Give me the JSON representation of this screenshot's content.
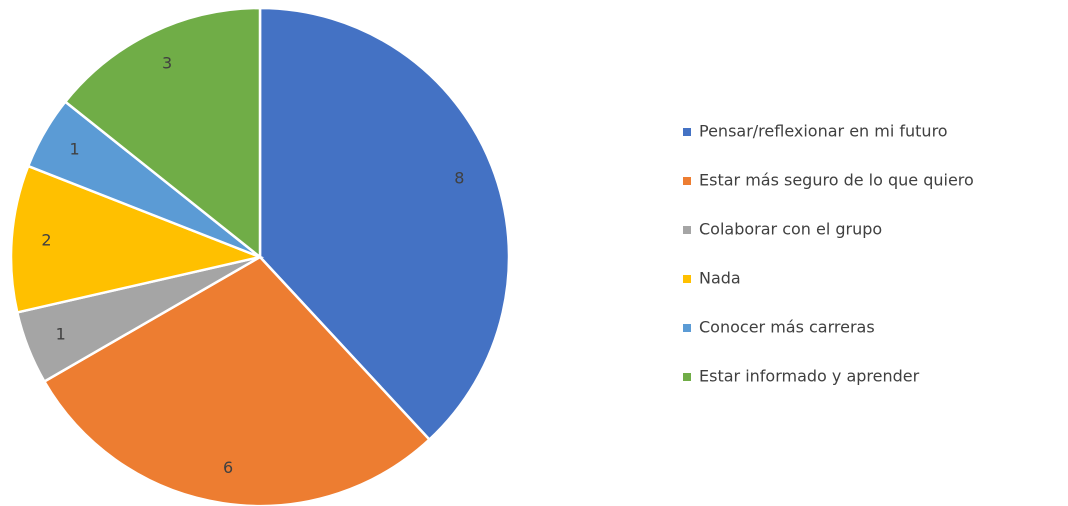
{
  "chart_data": {
    "type": "pie",
    "categories": [
      "Pensar/reflexionar en mi futuro",
      "Estar más seguro de lo que quiero",
      "Colaborar con el grupo",
      "Nada",
      "Conocer más carreras",
      "Estar informado y aprender"
    ],
    "values": [
      8,
      6,
      1,
      2,
      1,
      3
    ],
    "colors": [
      "#4472c4",
      "#ed7d31",
      "#a5a5a5",
      "#ffc000",
      "#5b9bd5",
      "#70ad47"
    ],
    "legend": "right"
  }
}
